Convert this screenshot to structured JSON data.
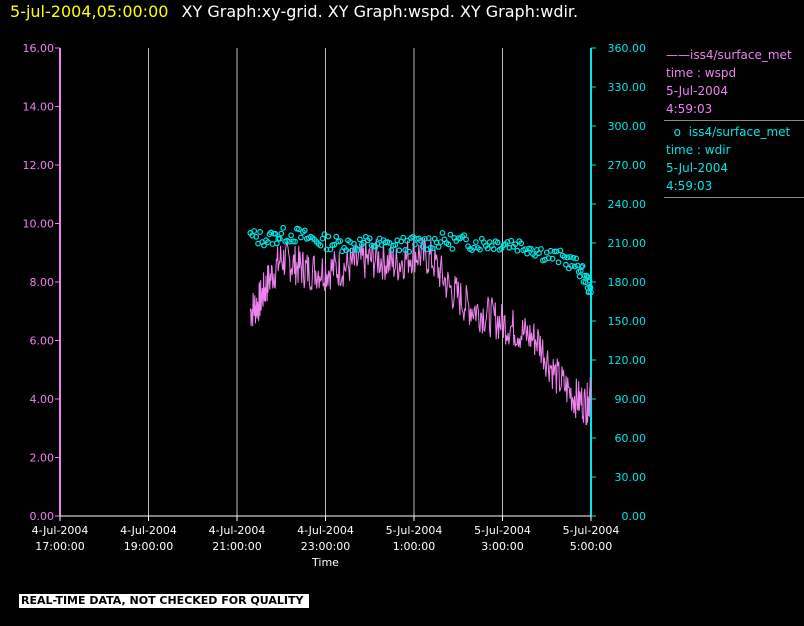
{
  "header": {
    "timestamp": "5-jul-2004,05:00:00",
    "titles": "XY Graph:xy-grid.  XY Graph:wspd.  XY Graph:wdir."
  },
  "legend": {
    "wspd": {
      "line1": "iss4/surface_met",
      "line2": "time : wspd",
      "line3": "5-Jul-2004",
      "line4": "4:59:03",
      "color": "#ee82ee"
    },
    "wdir": {
      "line1": "iss4/surface_met",
      "line2": "time : wdir",
      "line3": "5-Jul-2004",
      "line4": "4:59:03",
      "color": "#00e5e5"
    }
  },
  "footer": "REAL-TIME DATA, NOT CHECKED FOR QUALITY",
  "chart_data": {
    "type": "line",
    "xlabel": "Time",
    "x_ticks": [
      {
        "l1": "4-Jul-2004",
        "l2": "17:00:00",
        "h": 17
      },
      {
        "l1": "4-Jul-2004",
        "l2": "19:00:00",
        "h": 19
      },
      {
        "l1": "4-Jul-2004",
        "l2": "21:00:00",
        "h": 21
      },
      {
        "l1": "4-Jul-2004",
        "l2": "23:00:00",
        "h": 23
      },
      {
        "l1": "5-Jul-2004",
        "l2": "1:00:00",
        "h": 25
      },
      {
        "l1": "5-Jul-2004",
        "l2": "3:00:00",
        "h": 27
      },
      {
        "l1": "5-Jul-2004",
        "l2": "5:00:00",
        "h": 29
      }
    ],
    "xlim_hours": [
      17,
      29
    ],
    "y_left": {
      "min": 0,
      "max": 16,
      "ticks": [
        "0.00",
        "2.00",
        "4.00",
        "6.00",
        "8.00",
        "10.00",
        "12.00",
        "14.00",
        "16.00"
      ],
      "color": "#ee82ee"
    },
    "y_right": {
      "min": 0,
      "max": 360,
      "ticks": [
        "0.00",
        "30.00",
        "60.00",
        "90.00",
        "120.00",
        "150.00",
        "180.00",
        "210.00",
        "240.00",
        "270.00",
        "300.00",
        "330.00",
        "360.00"
      ],
      "color": "#00e5e5"
    },
    "grid": "vertical",
    "series": [
      {
        "name": "wspd",
        "axis": "left",
        "style": "line",
        "color": "#ee82ee",
        "hours": [
          21.3,
          21.5,
          21.7,
          22.0,
          22.3,
          22.6,
          23.0,
          23.4,
          23.8,
          24.2,
          24.6,
          25.0,
          25.4,
          25.8,
          26.2,
          26.6,
          27.0,
          27.4,
          27.8,
          28.2,
          28.6,
          28.9,
          29.0
        ],
        "values": [
          7.0,
          7.3,
          8.0,
          8.8,
          8.6,
          8.4,
          8.4,
          8.5,
          8.7,
          8.8,
          8.6,
          9.0,
          8.8,
          7.8,
          7.2,
          6.9,
          6.6,
          6.3,
          6.0,
          4.8,
          4.1,
          3.8,
          4.2
        ]
      },
      {
        "name": "wdir",
        "axis": "right",
        "style": "markers",
        "color": "#00e5e5",
        "hours": [
          21.3,
          21.7,
          22.0,
          22.4,
          22.8,
          23.2,
          23.6,
          24.0,
          24.4,
          24.8,
          25.2,
          25.6,
          26.0,
          26.4,
          26.8,
          27.2,
          27.6,
          28.0,
          28.4,
          28.7,
          28.9,
          29.0
        ],
        "values": [
          215,
          213,
          216,
          216,
          212,
          210,
          209,
          210,
          208,
          209,
          210,
          212,
          211,
          210,
          210,
          210,
          207,
          201,
          198,
          192,
          182,
          172
        ]
      }
    ]
  }
}
